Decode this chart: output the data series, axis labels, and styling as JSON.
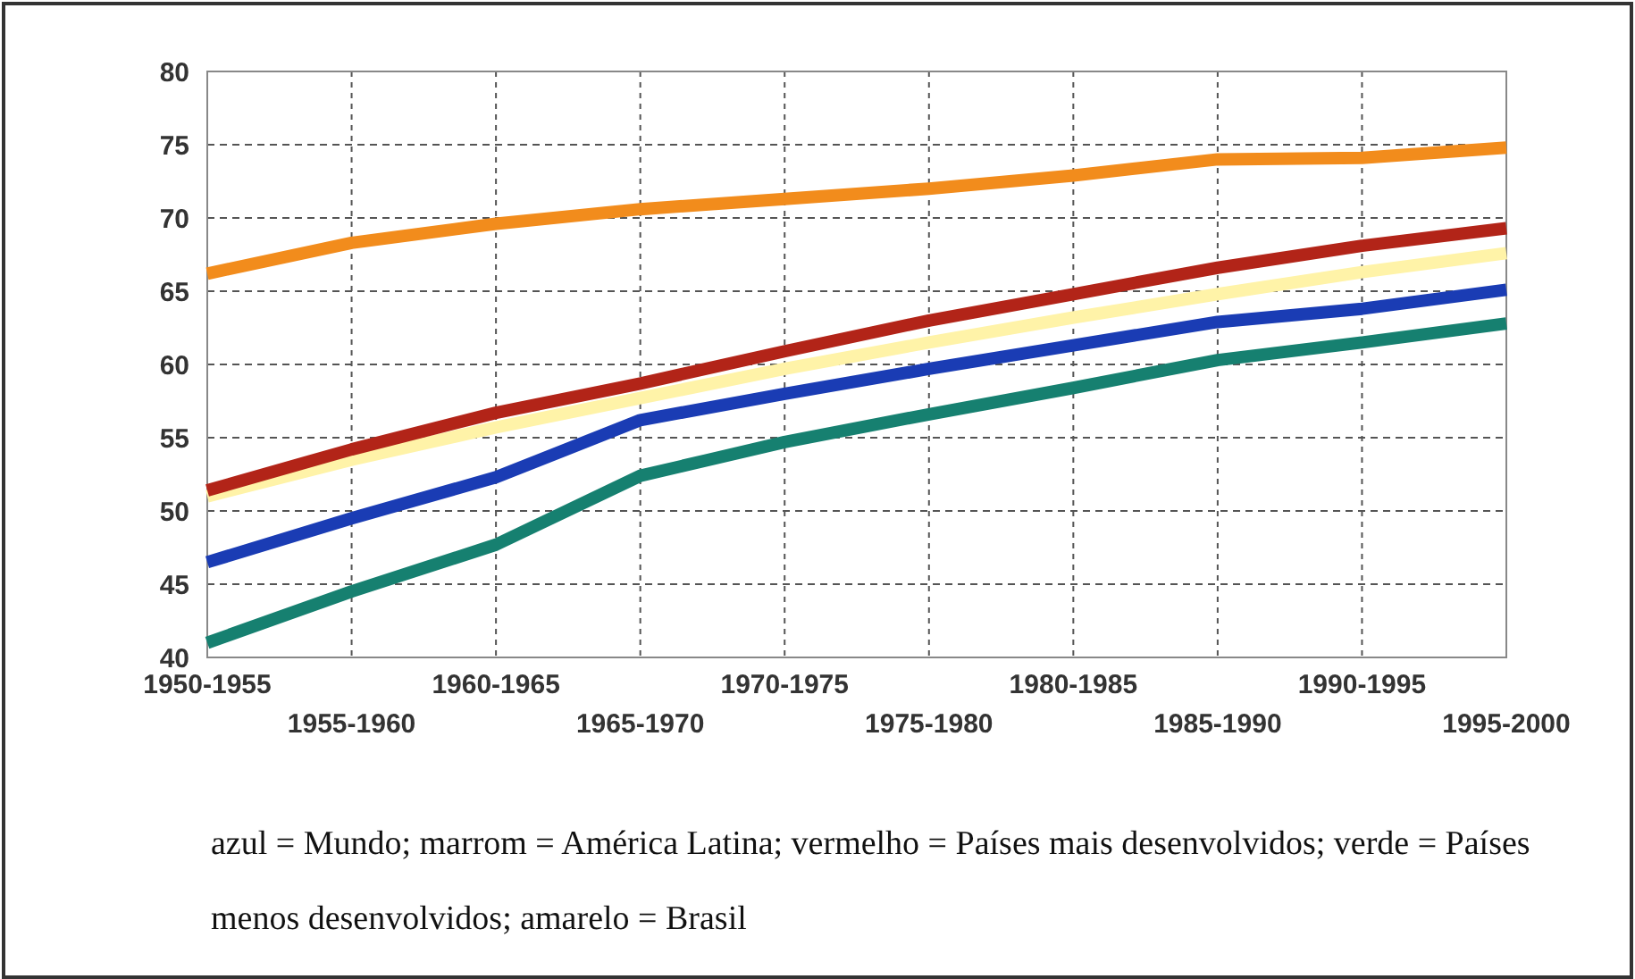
{
  "chart_data": {
    "type": "line",
    "categories": [
      "1950-1955",
      "1955-1960",
      "1960-1965",
      "1965-1970",
      "1970-1975",
      "1975-1980",
      "1980-1985",
      "1985-1990",
      "1990-1995",
      "1995-2000"
    ],
    "ylim": [
      40,
      80
    ],
    "yticks": [
      40,
      45,
      50,
      55,
      60,
      65,
      70,
      75,
      80
    ],
    "grid": true,
    "line_style": "solid",
    "marker": "none",
    "series": [
      {
        "color": "#f28c1c",
        "values": [
          66.2,
          68.3,
          69.6,
          70.6,
          71.3,
          72.0,
          72.9,
          74.0,
          74.1,
          74.8
        ]
      },
      {
        "color": "#fff3a8",
        "values": [
          51.0,
          53.5,
          55.7,
          57.7,
          59.7,
          61.5,
          63.2,
          64.8,
          66.3,
          67.6
        ]
      },
      {
        "color": "#b22418",
        "values": [
          51.4,
          54.2,
          56.7,
          58.7,
          60.9,
          63.0,
          64.8,
          66.6,
          68.1,
          69.3
        ]
      },
      {
        "color": "#1a3cb4",
        "values": [
          46.5,
          49.5,
          52.3,
          56.2,
          58.0,
          59.7,
          61.3,
          62.9,
          63.8,
          65.1
        ]
      },
      {
        "color": "#168070",
        "values": [
          41.0,
          44.5,
          47.7,
          52.4,
          54.7,
          56.6,
          58.4,
          60.3,
          61.5,
          62.8
        ]
      }
    ],
    "annotations": [
      "azul = Mundo; marrom = América Latina; vermelho = Países mais desenvolvidos; verde = Países menos desenvolvidos; amarelo = Brasil"
    ]
  }
}
